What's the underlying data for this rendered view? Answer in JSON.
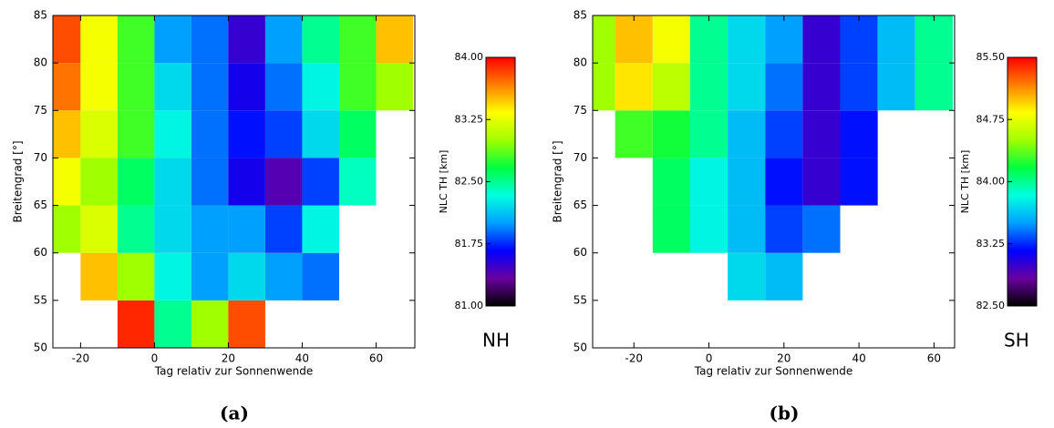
{
  "chart_data": [
    {
      "type": "heatmap",
      "caption": "(a)",
      "region": "NH",
      "xlabel": "Tag relativ zur Sonnenwende",
      "ylabel": "Breitengrad [°]",
      "xlim": [
        -27.5,
        70.5
      ],
      "xticks": [
        -20,
        0,
        20,
        40,
        60
      ],
      "ylim": [
        50,
        85
      ],
      "yticks": [
        50,
        55,
        60,
        65,
        70,
        75,
        80,
        85
      ],
      "x": [
        -25,
        -15,
        -5,
        5,
        15,
        25,
        35,
        45,
        55,
        65
      ],
      "y": [
        52.5,
        57.5,
        62.5,
        67.5,
        72.5,
        77.5,
        82.5
      ],
      "z": [
        [
          null,
          null,
          83.9,
          82.5,
          83.0,
          83.8,
          null,
          null,
          null,
          null
        ],
        [
          null,
          83.5,
          83.0,
          82.3,
          82.0,
          82.2,
          82.0,
          81.9,
          null,
          null
        ],
        [
          83.0,
          83.2,
          82.5,
          82.2,
          82.0,
          82.0,
          81.8,
          82.3,
          null,
          null
        ],
        [
          83.3,
          83.0,
          82.6,
          82.2,
          81.9,
          81.6,
          81.4,
          81.8,
          82.4,
          null
        ],
        [
          83.5,
          83.2,
          82.8,
          82.3,
          81.9,
          81.7,
          81.8,
          82.2,
          82.6,
          null
        ],
        [
          83.7,
          83.3,
          82.8,
          82.2,
          81.9,
          81.6,
          81.9,
          82.3,
          82.8,
          83.0
        ],
        [
          83.8,
          83.3,
          82.8,
          82.0,
          81.9,
          81.5,
          82.0,
          82.5,
          82.8,
          83.5
        ]
      ],
      "colorbar_label": "NLC TH [km]",
      "zlim": [
        81,
        84
      ],
      "zticks": [
        {
          "value": 81,
          "label": "81.00"
        },
        {
          "value": 81.75,
          "label": "81.75"
        },
        {
          "value": 82.5,
          "label": "82.50"
        },
        {
          "value": 83.25,
          "label": "83.25"
        },
        {
          "value": 84,
          "label": "84.00"
        }
      ],
      "colormap": [
        "#000000",
        "#6a00a0",
        "#0000ff",
        "#00a0ff",
        "#00ffe0",
        "#00ff40",
        "#a0ff00",
        "#ffff00",
        "#ff8000",
        "#ff0000"
      ]
    },
    {
      "type": "heatmap",
      "caption": "(b)",
      "region": "SH",
      "xlabel": "Tag relativ zur Sonnenwende",
      "ylabel": "Breitengrad [°]",
      "xlim": [
        -31,
        65.5
      ],
      "xticks": [
        -20,
        0,
        20,
        40,
        60
      ],
      "ylim": [
        50,
        85
      ],
      "yticks": [
        50,
        55,
        60,
        65,
        70,
        75,
        80,
        85
      ],
      "x": [
        -30,
        -20,
        -10,
        0,
        10,
        20,
        30,
        40,
        50,
        60
      ],
      "y": [
        52.5,
        57.5,
        62.5,
        67.5,
        72.5,
        77.5,
        82.5
      ],
      "z": [
        [
          null,
          null,
          null,
          null,
          null,
          null,
          null,
          null,
          null,
          null
        ],
        [
          null,
          null,
          null,
          null,
          83.7,
          83.6,
          null,
          null,
          null,
          null
        ],
        [
          null,
          null,
          84.1,
          83.8,
          83.6,
          83.3,
          83.4,
          null,
          null,
          null
        ],
        [
          null,
          null,
          84.1,
          83.8,
          83.6,
          83.2,
          83.0,
          83.2,
          null,
          null
        ],
        [
          null,
          84.3,
          84.2,
          84.0,
          83.6,
          83.3,
          83.0,
          83.2,
          null,
          null
        ],
        [
          84.5,
          84.9,
          84.6,
          84.0,
          83.7,
          83.4,
          83.0,
          83.3,
          83.6,
          84.0
        ],
        [
          84.5,
          85.0,
          84.8,
          84.0,
          83.7,
          83.5,
          83.0,
          83.3,
          83.6,
          84.0
        ]
      ],
      "colorbar_label": "NLC TH [km]",
      "zlim": [
        82.5,
        85.5
      ],
      "zticks": [
        {
          "value": 82.5,
          "label": "82.50"
        },
        {
          "value": 83.25,
          "label": "83.25"
        },
        {
          "value": 84,
          "label": "84.00"
        },
        {
          "value": 84.75,
          "label": "84.75"
        },
        {
          "value": 85.5,
          "label": "85.50"
        }
      ],
      "colormap": [
        "#000000",
        "#6a00a0",
        "#0000ff",
        "#00a0ff",
        "#00ffe0",
        "#00ff40",
        "#a0ff00",
        "#ffff00",
        "#ff8000",
        "#ff0000"
      ]
    }
  ]
}
